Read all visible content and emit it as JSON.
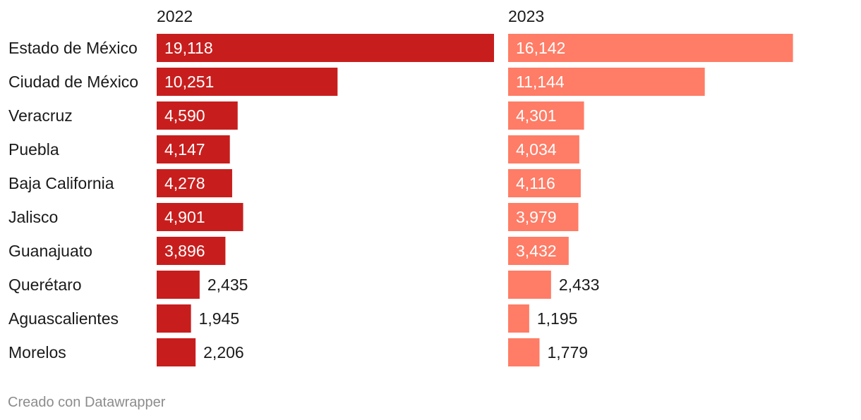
{
  "chart_data": {
    "type": "bar",
    "orientation": "horizontal",
    "layout": "split-panels",
    "categories": [
      "Estado de México",
      "Ciudad de México",
      "Veracruz",
      "Puebla",
      "Baja California",
      "Jalisco",
      "Guanajuato",
      "Querétaro",
      "Aguascalientes",
      "Morelos"
    ],
    "series": [
      {
        "name": "2022",
        "color": "#c71e1d",
        "values": [
          19118,
          10251,
          4590,
          4147,
          4278,
          4901,
          3896,
          2435,
          1945,
          2206
        ],
        "labels": [
          "19,118",
          "10,251",
          "4,590",
          "4,147",
          "4,278",
          "4,901",
          "3,896",
          "2,435",
          "1,945",
          "2,206"
        ]
      },
      {
        "name": "2023",
        "color": "#ff7c66",
        "values": [
          16142,
          11144,
          4301,
          4034,
          4116,
          3979,
          3432,
          2433,
          1195,
          1779
        ],
        "labels": [
          "16,142",
          "11,144",
          "4,301",
          "4,034",
          "4,116",
          "3,979",
          "3,432",
          "2,433",
          "1,195",
          "1,779"
        ]
      }
    ],
    "title": "",
    "xlabel": "",
    "ylabel": ""
  },
  "footer": "Creado con Datawrapper"
}
